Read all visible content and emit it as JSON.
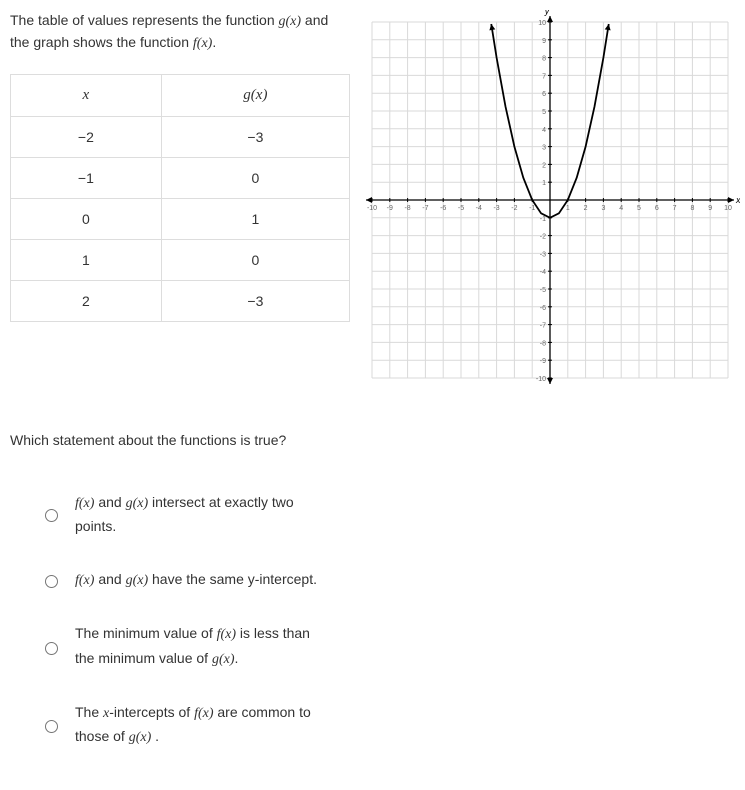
{
  "prompt": {
    "part1": "The table of values represents the function ",
    "g_expr": "g(x)",
    "part2": " and the graph shows the function ",
    "f_expr": "f(x)",
    "part3": "."
  },
  "table": {
    "headers": {
      "x": "x",
      "gx": "g(x)"
    },
    "rows": [
      {
        "x": "−2",
        "gx": "−3"
      },
      {
        "x": "−1",
        "gx": "0"
      },
      {
        "x": "0",
        "gx": "1"
      },
      {
        "x": "1",
        "gx": "0"
      },
      {
        "x": "2",
        "gx": "−3"
      }
    ]
  },
  "question": "Which statement about the functions is true?",
  "choices": [
    {
      "pre": "",
      "fn1": "f(x)",
      "mid": " and ",
      "fn2": "g(x)",
      "post": " intersect at exactly two points."
    },
    {
      "pre": "",
      "fn1": "f(x)",
      "mid": " and ",
      "fn2": "g(x)",
      "post": " have the same y-intercept."
    },
    {
      "pre": "The minimum value of ",
      "fn1": "f(x)",
      "mid": " is less than the minimum value of ",
      "fn2": "g(x)",
      "post": "."
    },
    {
      "pre": "The ",
      "fn1": "x",
      "mid": "-intercepts of ",
      "fn2": "f(x)",
      "post_mid": " are common to those of ",
      "fn3": "g(x)",
      "post": " ."
    }
  ],
  "chart": {
    "type": "line",
    "xlim": [
      -10,
      10
    ],
    "ylim": [
      -10,
      10
    ],
    "xtick_step": 1,
    "ytick_step": 1,
    "background_color": "#ffffff",
    "grid_color": "#d9d9d9",
    "axis_color": "#000000",
    "tick_label_fontsize": 7,
    "tick_label_color": "#666666",
    "axis_label_fontsize": 9,
    "xlabel": "x",
    "ylabel": "y",
    "curve": {
      "color": "#000000",
      "stroke_width": 1.8,
      "a": 1.0,
      "h": 0,
      "k": -1,
      "x_points": [
        -3.3,
        -3,
        -2.5,
        -2,
        -1.5,
        -1,
        -0.5,
        0,
        0.5,
        1,
        1.5,
        2,
        2.5,
        3,
        3.3
      ]
    },
    "arrows": {
      "size": 6,
      "curve_tips": [
        {
          "x": -3.3,
          "dir_x": -0.18,
          "dir_y": 1
        },
        {
          "x": 3.3,
          "dir_x": 0.18,
          "dir_y": 1
        }
      ]
    }
  }
}
